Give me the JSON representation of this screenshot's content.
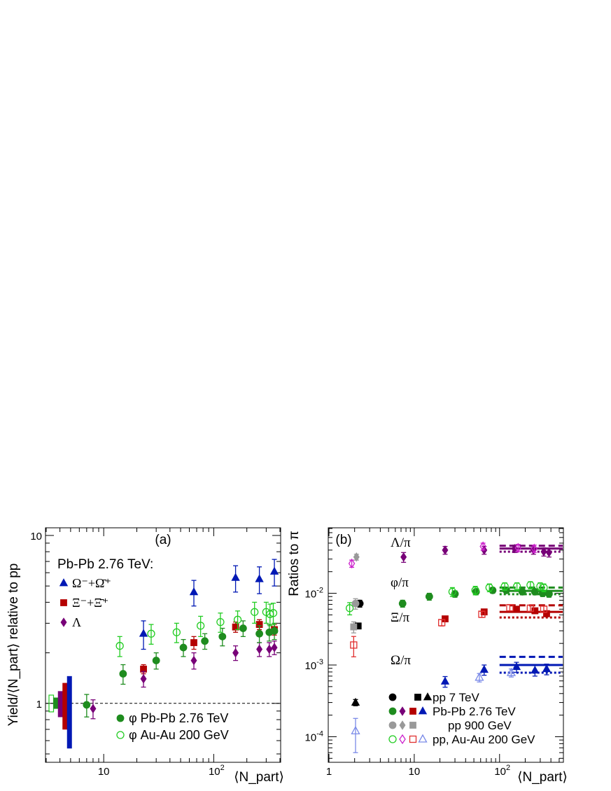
{
  "chart_data": [
    {
      "id": "a",
      "type": "scatter",
      "panel_label": "(a)",
      "ylabel": "Yield/⟨N_part⟩ relative to pp",
      "xlabel": "⟨N_part⟩",
      "xscale": "log",
      "yscale": "log",
      "xlim": [
        3,
        400
      ],
      "ylim": [
        0.45,
        11
      ],
      "x_ticks": [
        "10",
        "10^2"
      ],
      "y_ticks": [
        "1",
        "10"
      ],
      "reference_line": 1,
      "legend_header": "Pb-Pb 2.76 TeV:",
      "legend_top": [
        {
          "label": "Ω⁻+Ω̄⁺",
          "color": "#0018b4",
          "marker": "triangle"
        },
        {
          "label": "Ξ⁻+Ξ̄⁺",
          "color": "#b40000",
          "marker": "square"
        },
        {
          "label": "Λ",
          "color": "#780078",
          "marker": "diamond"
        }
      ],
      "legend_bottom": [
        {
          "label": "φ Pb-Pb 2.76 TeV",
          "color": "#1e8c1e",
          "marker": "circle"
        },
        {
          "label": "φ Au-Au 200 GeV",
          "color": "#22cc22",
          "marker": "open-circle"
        }
      ],
      "series": [
        {
          "name": "Ω⁻+Ω̄⁺",
          "color": "#0018b4",
          "marker": "triangle",
          "x": [
            23,
            66,
            158,
            260,
            356
          ],
          "y": [
            2.6,
            4.6,
            5.6,
            5.5,
            6.1
          ],
          "err": [
            0.5,
            0.8,
            1.0,
            1.0,
            1.1
          ]
        },
        {
          "name": "Ξ⁻+Ξ̄⁺",
          "color": "#b40000",
          "marker": "square",
          "x": [
            23,
            66,
            158,
            260,
            356
          ],
          "y": [
            1.6,
            2.3,
            2.85,
            2.95,
            2.75
          ],
          "err": [
            0.1,
            0.2,
            0.2,
            0.2,
            0.2
          ]
        },
        {
          "name": "Λ",
          "color": "#780078",
          "marker": "diamond",
          "x": [
            8,
            23,
            66,
            158,
            260,
            320,
            356
          ],
          "y": [
            0.93,
            1.4,
            1.8,
            2.0,
            2.1,
            2.1,
            2.15
          ],
          "err": [
            0.12,
            0.15,
            0.2,
            0.2,
            0.2,
            0.2,
            0.2
          ]
        },
        {
          "name": "φ Pb-Pb 2.76 TeV",
          "color": "#1e8c1e",
          "marker": "circle",
          "x": [
            7,
            15,
            30,
            53,
            83,
            120,
            185,
            260,
            320,
            356
          ],
          "y": [
            0.98,
            1.5,
            1.8,
            2.15,
            2.35,
            2.5,
            2.8,
            2.6,
            2.65,
            2.7
          ],
          "err": [
            0.15,
            0.2,
            0.2,
            0.25,
            0.25,
            0.3,
            0.3,
            0.3,
            0.3,
            0.3
          ]
        },
        {
          "name": "φ Au-Au 200 GeV",
          "color": "#22cc22",
          "marker": "open-circle",
          "x": [
            14,
            27,
            46,
            76,
            115,
            165,
            235,
            300,
            325,
            348
          ],
          "y": [
            2.2,
            2.6,
            2.65,
            2.9,
            3.05,
            3.15,
            3.5,
            3.5,
            3.4,
            3.45
          ],
          "err": [
            0.3,
            0.35,
            0.35,
            0.4,
            0.4,
            0.4,
            0.5,
            0.5,
            0.5,
            0.5
          ]
        }
      ],
      "normalization_boxes": [
        {
          "color": "#22cc22",
          "filled": false,
          "lo": 0.89,
          "hi": 1.12
        },
        {
          "color": "#1e8c1e",
          "filled": true,
          "lo": 0.93,
          "hi": 1.08
        },
        {
          "color": "#780078",
          "filled": true,
          "lo": 0.83,
          "hi": 1.18
        },
        {
          "color": "#b40000",
          "filled": true,
          "lo": 0.7,
          "hi": 1.32
        },
        {
          "color": "#0018b4",
          "filled": true,
          "lo": 0.54,
          "hi": 1.45
        }
      ]
    },
    {
      "id": "b",
      "type": "scatter",
      "panel_label": "(b)",
      "ylabel": "Ratios to π",
      "xlabel": "⟨N_part⟩",
      "xscale": "log",
      "yscale": "log",
      "xlim": [
        1,
        550
      ],
      "ylim": [
        4.5e-05,
        0.08
      ],
      "x_ticks": [
        "1",
        "10",
        "10^2"
      ],
      "y_ticks": [
        "10^-4",
        "10^-3",
        "10^-2"
      ],
      "ratio_labels": [
        {
          "label": "Λ/π",
          "y": 0.042
        },
        {
          "label": "φ/π",
          "y": 0.0125
        },
        {
          "label": "Ξ/π",
          "y": 0.0032
        },
        {
          "label": "Ω/π",
          "y": 0.00065
        }
      ],
      "legend": [
        {
          "label": "pp 7 TeV",
          "color": "#000000"
        },
        {
          "label": "Pb-Pb 2.76 TeV",
          "colors": [
            "#1e8c1e",
            "#780078",
            "#0018b4"
          ]
        },
        {
          "label": "pp 900 GeV",
          "color": "#999999"
        },
        {
          "label": "pp, Au-Au 200 GeV",
          "colors": [
            "#22cc22",
            "#cc22cc",
            "#e03030",
            "#7a8ae8"
          ]
        }
      ],
      "series": [
        {
          "name": "Λ/π Pb-Pb 2.76 TeV",
          "color": "#780078",
          "marker": "diamond",
          "x": [
            7.5,
            23,
            66,
            150,
            250,
            330,
            380
          ],
          "y": [
            0.032,
            0.04,
            0.04,
            0.042,
            0.04,
            0.038,
            0.037
          ],
          "err": [
            0.005,
            0.005,
            0.005,
            0.005,
            0.005,
            0.005,
            0.005
          ]
        },
        {
          "name": "Λ/π 200 GeV",
          "color": "#cc22cc",
          "marker": "open-diamond",
          "x": [
            1.85,
            64,
            165,
            255
          ],
          "y": [
            0.026,
            0.045,
            0.043,
            0.042
          ],
          "err": [
            0.003,
            0.005,
            0.005,
            0.005
          ]
        },
        {
          "name": "Λ/π pp 900 GeV",
          "color": "#999999",
          "marker": "diamond",
          "x": [
            2.1
          ],
          "y": [
            0.032
          ],
          "err": [
            0.003
          ]
        },
        {
          "name": "φ/π Pb-Pb 2.76 TeV",
          "color": "#1e8c1e",
          "marker": "circle",
          "x": [
            7.3,
            15,
            30,
            53,
            83,
            120,
            185,
            260,
            320,
            380
          ],
          "y": [
            0.0072,
            0.009,
            0.0098,
            0.0105,
            0.011,
            0.011,
            0.0105,
            0.0105,
            0.01,
            0.0098
          ],
          "err": [
            0.0008,
            0.001,
            0.001,
            0.001,
            0.001,
            0.001,
            0.001,
            0.001,
            0.001,
            0.001
          ]
        },
        {
          "name": "φ/π 200 GeV",
          "color": "#22cc22",
          "marker": "open-circle",
          "x": [
            1.75,
            28,
            52,
            76,
            115,
            160,
            230,
            300,
            330
          ],
          "y": [
            0.0062,
            0.0105,
            0.011,
            0.012,
            0.0125,
            0.0125,
            0.013,
            0.0125,
            0.012
          ],
          "err": [
            0.0012,
            0.0015,
            0.0015,
            0.0015,
            0.0015,
            0.0015,
            0.0015,
            0.0015,
            0.0015
          ]
        },
        {
          "name": "φ/π pp 7 TeV",
          "color": "#000000",
          "marker": "circle",
          "x": [
            2.3
          ],
          "y": [
            0.0072
          ],
          "err": [
            0.0008
          ]
        },
        {
          "name": "φ/π pp 900 GeV",
          "color": "#999999",
          "marker": "circle",
          "x": [
            2.05
          ],
          "y": [
            0.0072
          ],
          "err": [
            0.0012
          ]
        },
        {
          "name": "Ξ/π Pb-Pb 2.76 TeV",
          "color": "#b40000",
          "marker": "square",
          "x": [
            23,
            66,
            158,
            260,
            356
          ],
          "y": [
            0.0044,
            0.0055,
            0.006,
            0.0057,
            0.0052
          ],
          "err": [
            0.0004,
            0.0005,
            0.0005,
            0.0005,
            0.0005
          ]
        },
        {
          "name": "Ξ/π 200 GeV",
          "color": "#e03030",
          "marker": "open-square",
          "x": [
            1.95,
            21,
            62,
            132,
            230,
            330
          ],
          "y": [
            0.0019,
            0.0039,
            0.0051,
            0.0063,
            0.0062,
            0.006
          ],
          "err": [
            0.0006,
            0.0004,
            0.0005,
            0.0006,
            0.0006,
            0.0006
          ]
        },
        {
          "name": "Ξ/π pp 7 TeV",
          "color": "#000000",
          "marker": "square",
          "x": [
            2.2
          ],
          "y": [
            0.0035
          ],
          "err": [
            0.0002
          ]
        },
        {
          "name": "Ξ/π pp 900 GeV",
          "color": "#999999",
          "marker": "square",
          "x": [
            1.95
          ],
          "y": [
            0.0034
          ],
          "err": [
            0.0006
          ]
        },
        {
          "name": "Ω/π Pb-Pb 2.76 TeV",
          "color": "#0018b4",
          "marker": "triangle",
          "x": [
            23,
            66,
            158,
            260,
            356
          ],
          "y": [
            0.00059,
            0.00086,
            0.00094,
            0.00084,
            0.00088
          ],
          "err": [
            0.0001,
            0.00014,
            0.00015,
            0.00014,
            0.00015
          ]
        },
        {
          "name": "Ω/π 200 GeV",
          "color": "#7a8ae8",
          "marker": "open-triangle",
          "x": [
            2.05,
            58,
            137
          ],
          "y": [
            0.00012,
            0.00067,
            0.00078
          ],
          "err": [
            6e-05,
            9e-05,
            0.0001
          ]
        },
        {
          "name": "Ω/π pp 7 TeV",
          "color": "#000000",
          "marker": "triangle",
          "x": [
            2.05
          ],
          "y": [
            0.0003
          ],
          "err": [
            3e-05
          ]
        }
      ],
      "model_lines": [
        {
          "color": "#780078",
          "y_solid": 0.042,
          "y_dashed": 0.046,
          "y_dotted": 0.038
        },
        {
          "color": "#1e8c1e",
          "y_solid": 0.0108,
          "y_dashed": 0.012,
          "y_dotted": 0.0097
        },
        {
          "color": "#b40000",
          "y_solid": 0.0055,
          "y_dashed": 0.0068,
          "y_dotted": 0.0046
        },
        {
          "color": "#0018b4",
          "y_solid": 0.001,
          "y_dashed": 0.0013,
          "y_dotted": 0.00078
        }
      ]
    }
  ]
}
